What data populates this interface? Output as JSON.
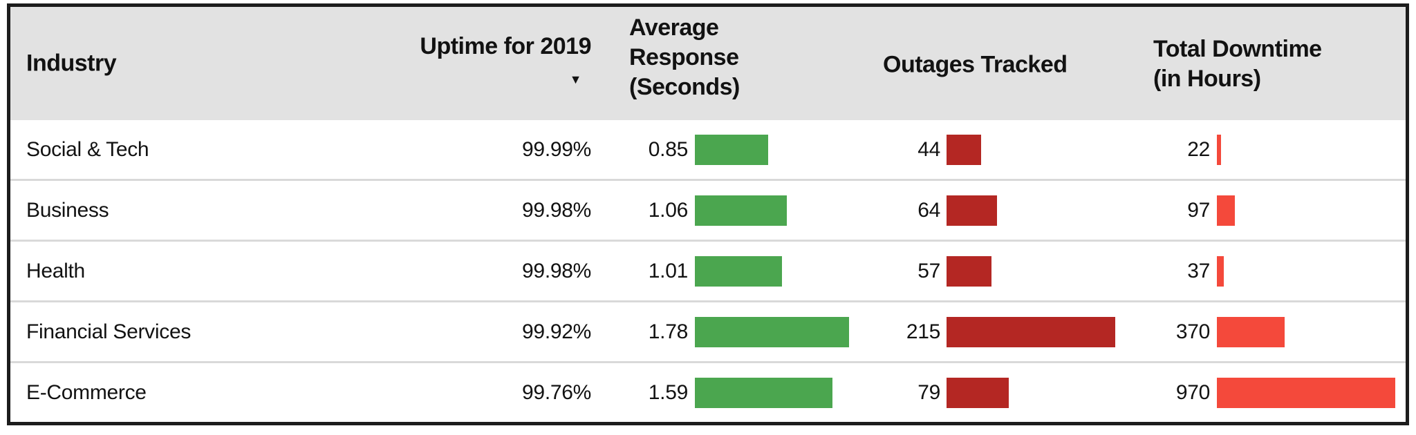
{
  "table": {
    "columns": [
      {
        "label": "Industry"
      },
      {
        "label": "Uptime for 2019",
        "sort_indicator": "▼",
        "sorted": "desc"
      },
      {
        "label": "Average Response (Seconds)"
      },
      {
        "label": "Outages Tracked"
      },
      {
        "label": "Total Downtime (in Hours)"
      }
    ],
    "rows": [
      {
        "industry": "Social & Tech",
        "uptime": "99.99%",
        "response": "0.85",
        "outages": "44",
        "downtime": "22",
        "values": {
          "response": 0.85,
          "outages": 44,
          "downtime": 22
        }
      },
      {
        "industry": "Business",
        "uptime": "99.98%",
        "response": "1.06",
        "outages": "64",
        "downtime": "97",
        "values": {
          "response": 1.06,
          "outages": 64,
          "downtime": 97
        }
      },
      {
        "industry": "Health",
        "uptime": "99.98%",
        "response": "1.01",
        "outages": "57",
        "downtime": "37",
        "values": {
          "response": 1.01,
          "outages": 57,
          "downtime": 37
        }
      },
      {
        "industry": "Financial Services",
        "uptime": "99.92%",
        "response": "1.78",
        "outages": "215",
        "downtime": "370",
        "values": {
          "response": 1.78,
          "outages": 215,
          "downtime": 370
        }
      },
      {
        "industry": "E-Commerce",
        "uptime": "99.76%",
        "response": "1.59",
        "outages": "79",
        "downtime": "970",
        "values": {
          "response": 1.59,
          "outages": 79,
          "downtime": 970
        }
      }
    ]
  },
  "colors": {
    "response_bar": "#4ba64f",
    "outages_bar": "#b42723",
    "downtime_bar": "#f4493b",
    "header_background": "#e2e2e2",
    "row_separator": "#d9d9d9",
    "table_border": "#1c1c1c"
  },
  "chart_data": {
    "type": "table",
    "columns": [
      "Industry",
      "Uptime for 2019",
      "Average Response (Seconds)",
      "Outages Tracked",
      "Total Downtime (in Hours)"
    ],
    "sort": {
      "column": "Uptime for 2019",
      "direction": "desc"
    },
    "rows": [
      {
        "industry": "Social & Tech",
        "uptime_pct": 99.99,
        "avg_response_s": 0.85,
        "outages": 44,
        "downtime_h": 22
      },
      {
        "industry": "Business",
        "uptime_pct": 99.98,
        "avg_response_s": 1.06,
        "outages": 64,
        "downtime_h": 97
      },
      {
        "industry": "Health",
        "uptime_pct": 99.98,
        "avg_response_s": 1.01,
        "outages": 57,
        "downtime_h": 37
      },
      {
        "industry": "Financial Services",
        "uptime_pct": 99.92,
        "avg_response_s": 1.78,
        "outages": 215,
        "downtime_h": 370
      },
      {
        "industry": "E-Commerce",
        "uptime_pct": 99.76,
        "avg_response_s": 1.59,
        "outages": 79,
        "downtime_h": 970
      }
    ],
    "inline_bars": [
      {
        "column": "Average Response (Seconds)",
        "color": "#4ba64f"
      },
      {
        "column": "Outages Tracked",
        "color": "#b42723"
      },
      {
        "column": "Total Downtime (in Hours)",
        "color": "#f4493b"
      }
    ],
    "legend_position": "none",
    "grid": false
  }
}
